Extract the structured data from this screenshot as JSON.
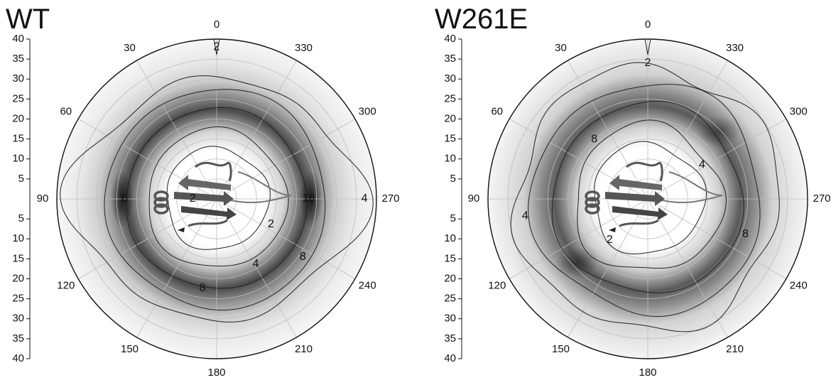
{
  "chart_data": [
    {
      "type": "polar-contour",
      "title": "WT",
      "angles": [
        0,
        30,
        60,
        90,
        120,
        150,
        180,
        210,
        240,
        270,
        300,
        330
      ],
      "rlim": [
        0,
        40
      ],
      "rticks": [
        5,
        10,
        15,
        20,
        25,
        30,
        35,
        40
      ],
      "grid": true,
      "contour_labels": [
        {
          "level": 2,
          "angle": 0,
          "r": 38
        },
        {
          "level": 6,
          "angle": 90,
          "r": 23
        },
        {
          "level": 16,
          "angle": 270,
          "r": 23
        },
        {
          "level": 4,
          "angle": 270,
          "r": 37
        },
        {
          "level": 2,
          "angle": 90,
          "r": 6
        },
        {
          "level": 2,
          "angle": 245,
          "r": 15
        },
        {
          "level": 4,
          "angle": 211,
          "r": 19
        },
        {
          "level": 8,
          "angle": 236,
          "r": 26
        },
        {
          "level": 8,
          "angle": 171,
          "r": 22.6
        }
      ]
    },
    {
      "type": "polar-contour",
      "title": "W261E",
      "angles": [
        0,
        30,
        60,
        90,
        120,
        150,
        180,
        210,
        240,
        270,
        300,
        330
      ],
      "rlim": [
        0,
        40
      ],
      "rticks": [
        5,
        10,
        15,
        20,
        25,
        30,
        35,
        40
      ],
      "grid": true,
      "contour_labels": [
        {
          "level": 2,
          "angle": 0,
          "r": 34
        },
        {
          "level": 8,
          "angle": 42,
          "r": 20
        },
        {
          "level": 4,
          "angle": 302,
          "r": 16
        },
        {
          "level": 4,
          "angle": 98,
          "r": 31
        },
        {
          "level": 8,
          "angle": 250,
          "r": 26
        },
        {
          "level": 2,
          "angle": 137,
          "r": 14
        }
      ]
    }
  ]
}
